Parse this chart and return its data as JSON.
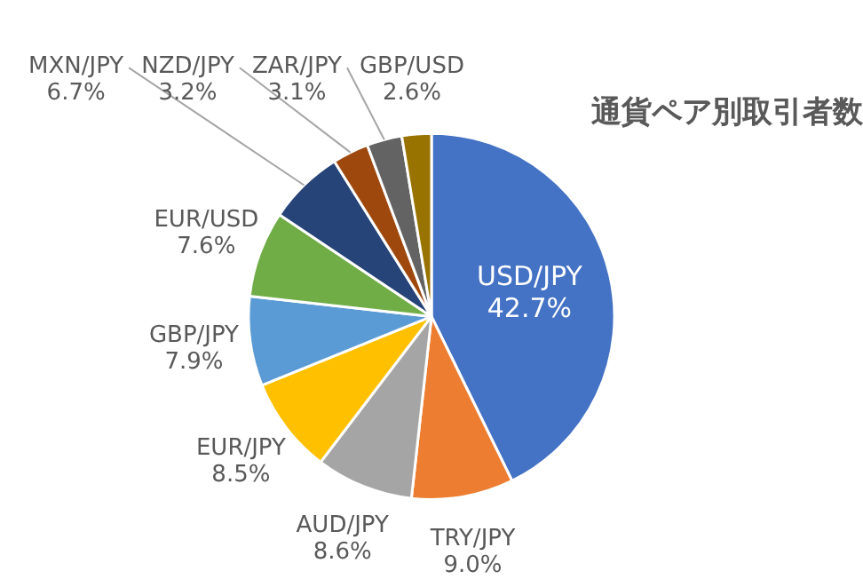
{
  "chart_data": {
    "type": "pie",
    "title": "通貨ペア別取引者数",
    "categories": [
      "USD/JPY",
      "TRY/JPY",
      "AUD/JPY",
      "EUR/JPY",
      "GBP/JPY",
      "EUR/USD",
      "MXN/JPY",
      "NZD/JPY",
      "ZAR/JPY",
      "GBP/USD"
    ],
    "values": [
      42.7,
      9.0,
      8.6,
      8.5,
      7.9,
      7.6,
      6.7,
      3.2,
      3.1,
      2.6
    ],
    "value_labels": [
      "42.7%",
      "9.0%",
      "8.6%",
      "8.5%",
      "7.9%",
      "7.6%",
      "6.7%",
      "3.2%",
      "3.1%",
      "2.6%"
    ],
    "colors": [
      "#4472c4",
      "#ed7d31",
      "#a5a5a5",
      "#ffc000",
      "#5b9bd5",
      "#70ad47",
      "#264478",
      "#9e480e",
      "#636363",
      "#997300"
    ],
    "legend": false
  }
}
